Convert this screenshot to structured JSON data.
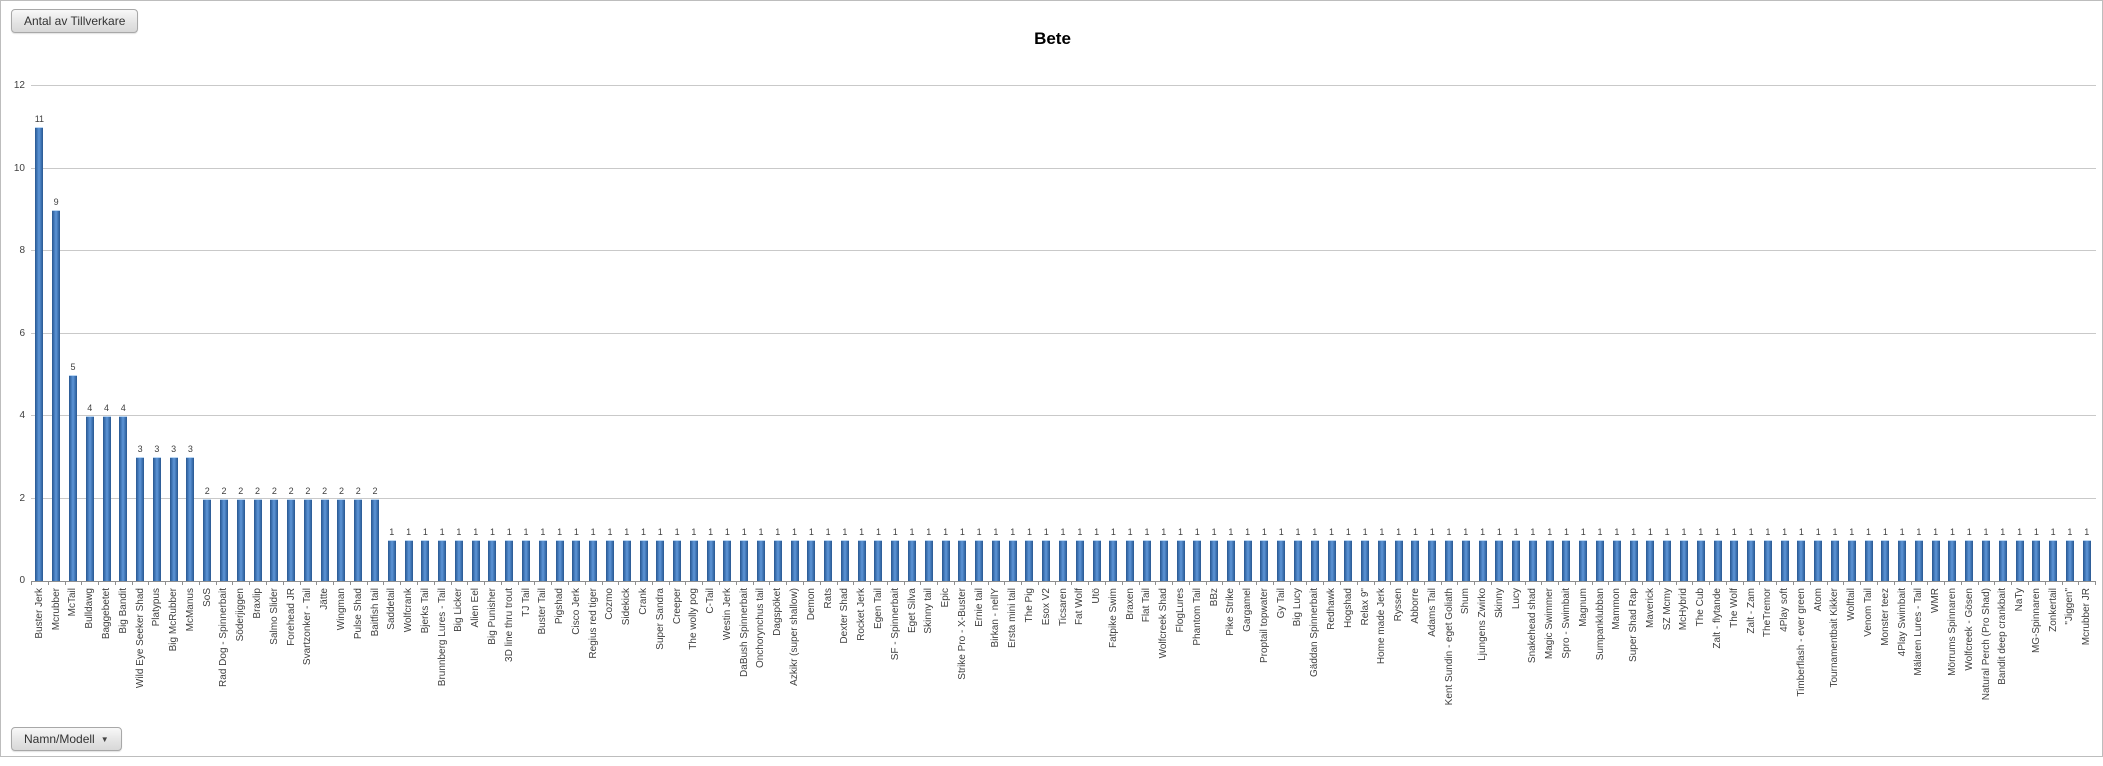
{
  "header": {
    "field_button_label": "Antal av Tillverkare"
  },
  "footer": {
    "axis_field_button_label": "Namn/Modell",
    "dropdown_icon": "▼"
  },
  "colors": {
    "bar_fill": "#3F74B4",
    "bar_edge": "#2A5890",
    "gridline": "#C9C9C9",
    "axis": "#8F8F8F",
    "text": "#3F3F3F"
  },
  "chart_data": {
    "type": "bar",
    "title": "Bete",
    "xlabel": "Namn/Modell",
    "ylabel": "Antal av Tillverkare",
    "ylim": [
      0,
      12
    ],
    "yticks": [
      0,
      2,
      4,
      6,
      8,
      10,
      12
    ],
    "grid": true,
    "legend": false,
    "categories": [
      "Buster Jerk",
      "Mcrubber",
      "McTail",
      "Bulldawg",
      "Baggebetet",
      "Big Bandit",
      "Wild Eye Seeker Shad",
      "Platypus",
      "Big McRubber",
      "McManus",
      "SoS",
      "Rad Dog - Spinnerbait",
      "Söderjiggen",
      "Braxlip",
      "Salmo Slider",
      "Forehead JR",
      "Svartzonker - Tail",
      "Jätte",
      "Wingman",
      "Pulse Shad",
      "Baitfish tail",
      "Saddetail",
      "Wolfcrank",
      "Bjerks Tail",
      "Brunnberg Lures - Tail",
      "Big Licker",
      "Alien Eel",
      "Big Punisher",
      "3D line thru trout",
      "TJ Tail",
      "Buster Tail",
      "Pigshad",
      "Cisco Jerk",
      "Regius red tiger",
      "Cozmo",
      "Sidekick",
      "Crank",
      "Super Sandra",
      "Creeper",
      "The wolly pog",
      "C-Tail",
      "Westin Jerk",
      "DaBush Spinnerbait",
      "Onchorynchus tail",
      "Dagspöket",
      "Azkikr (super shallow)",
      "Demon",
      "Rats",
      "Dexter Shad",
      "Rocket Jerk",
      "Egen Tail",
      "SF - Spinnerbait",
      "Eget Silva",
      "Skinny tail",
      "Epic",
      "Strike Pro - X-Buster",
      "Ernie tail",
      "Birkan - nellY",
      "Ersta mini tail",
      "The Pig",
      "Esox V2",
      "Ticsaren",
      "Fat Wolf",
      "Utö",
      "Fatpike Swim",
      "Braxen",
      "Flat Tail",
      "Wolfcreek Shad",
      "FlogLures",
      "Phantom Tail",
      "BBz",
      "Pike Strike",
      "Gargamel",
      "Proptail topwater",
      "Gy Tail",
      "Big Lucy",
      "Gäddan Spinnerbait",
      "Redhawk",
      "Hogshad",
      "Relax 9\"",
      "Home made Jerk",
      "Ryssen",
      "Abborre",
      "Adams Tail",
      "Kent Sundin - eget Goliath",
      "Shum",
      "Ljungens Zwirko",
      "Skinny",
      "Lucy",
      "Snakehead shad",
      "Magic Swimmer",
      "Spro - Swimbait",
      "Magnum",
      "Sumpanklubban",
      "Mammon",
      "Super Shad Rap",
      "Maverick",
      "SZ Mcmy",
      "McHybrid",
      "The Cub",
      "Zalt - flytande",
      "The Wolf",
      "Zalt - Zam",
      "TheTremor",
      "4Play soft",
      "Timberflash - ever green",
      "Atom",
      "Tournamentbait Kikker",
      "Wolftail",
      "Venom Tail",
      "Monster teez",
      "4Play Swimbait",
      "Mälaren Lures - Tail",
      "WMR",
      "Mörrums Spinnaren",
      "Wolfcreek - Gösen",
      "Natural Perch (Pro Shad)",
      "Bandit deep crankbait",
      "NaTy",
      "MG-Spinnaren",
      "Zonkertail",
      "\"Jiggen\"",
      "Mcrubber JR"
    ],
    "values": [
      11,
      9,
      5,
      4,
      4,
      4,
      3,
      3,
      3,
      3,
      2,
      2,
      2,
      2,
      2,
      2,
      2,
      2,
      2,
      2,
      2,
      1,
      1,
      1,
      1,
      1,
      1,
      1,
      1,
      1,
      1,
      1,
      1,
      1,
      1,
      1,
      1,
      1,
      1,
      1,
      1,
      1,
      1,
      1,
      1,
      1,
      1,
      1,
      1,
      1,
      1,
      1,
      1,
      1,
      1,
      1,
      1,
      1,
      1,
      1,
      1,
      1,
      1,
      1,
      1,
      1,
      1,
      1,
      1,
      1,
      1,
      1,
      1,
      1,
      1,
      1,
      1,
      1,
      1,
      1,
      1,
      1,
      1,
      1,
      1,
      1,
      1,
      1,
      1,
      1,
      1,
      1,
      1,
      1,
      1,
      1,
      1,
      1,
      1,
      1,
      1,
      1,
      1,
      1,
      1,
      1,
      1,
      1,
      1,
      1,
      1,
      1,
      1,
      1,
      1,
      1,
      1,
      1,
      1,
      1,
      1,
      1,
      1
    ]
  }
}
